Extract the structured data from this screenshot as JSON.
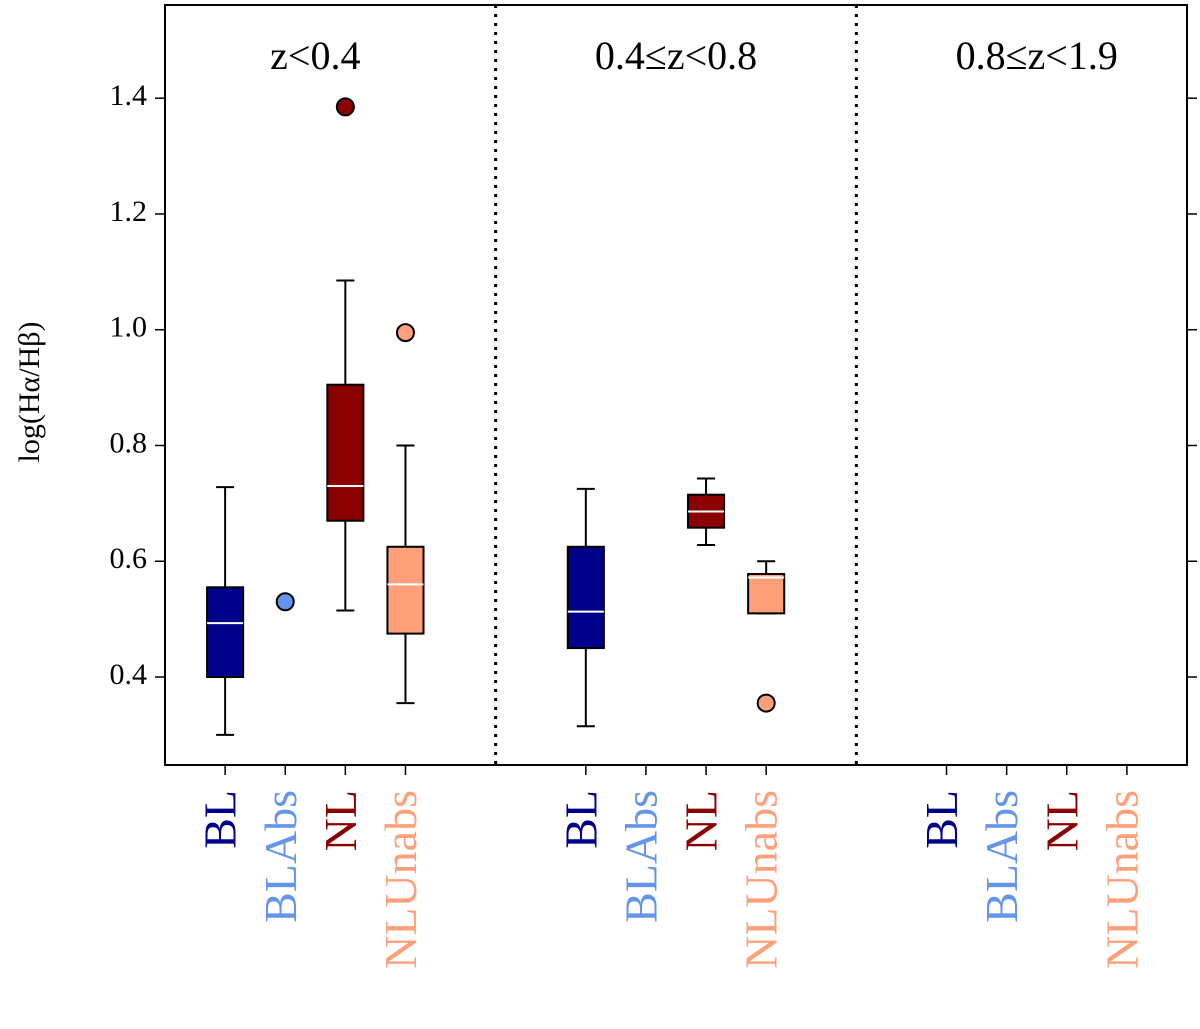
{
  "chart_data": {
    "type": "box",
    "ylabel": "log(Hα/Hβ)",
    "ylim": [
      0.248,
      1.561
    ],
    "yticks": [
      0.4,
      0.6,
      0.8,
      {
        "value": 1,
        "label": "1.0"
      },
      1.2,
      1.4
    ],
    "panels": [
      {
        "label": "z<0.4",
        "series": [
          {
            "name": "BL",
            "color": "#00008b",
            "stats": {
              "whislo": 0.3,
              "q1": 0.4,
              "med": 0.493,
              "q3": 0.555,
              "whishi": 0.728
            },
            "fliers": []
          },
          {
            "name": "BLAbs",
            "color": "#6495ed",
            "stats": null,
            "fliers": [
              0.53
            ]
          },
          {
            "name": "NL",
            "color": "#8b0000",
            "stats": {
              "whislo": 0.515,
              "q1": 0.67,
              "med": 0.73,
              "q3": 0.905,
              "whishi": 1.085
            },
            "fliers": [
              1.385
            ]
          },
          {
            "name": "NLUnabs",
            "color": "#ffa07a",
            "stats": {
              "whislo": 0.355,
              "q1": 0.475,
              "med": 0.56,
              "q3": 0.625,
              "whishi": 0.8
            },
            "fliers": [
              0.995
            ]
          }
        ]
      },
      {
        "label": "0.4≤z<0.8",
        "series": [
          {
            "name": "BL",
            "color": "#00008b",
            "stats": {
              "whislo": 0.315,
              "q1": 0.45,
              "med": 0.513,
              "q3": 0.625,
              "whishi": 0.725
            },
            "fliers": []
          },
          {
            "name": "BLAbs",
            "color": "#6495ed",
            "stats": null,
            "fliers": []
          },
          {
            "name": "NL",
            "color": "#8b0000",
            "stats": {
              "whislo": 0.628,
              "q1": 0.658,
              "med": 0.686,
              "q3": 0.715,
              "whishi": 0.743
            },
            "fliers": []
          },
          {
            "name": "NLUnabs",
            "color": "#ffa07a",
            "stats": {
              "whislo": 0.51,
              "q1": 0.51,
              "med": 0.572,
              "q3": 0.578,
              "whishi": 0.6
            },
            "fliers": [
              0.355
            ]
          }
        ]
      },
      {
        "label": "0.8≤z<1.9",
        "series": [
          {
            "name": "BL",
            "color": "#00008b",
            "stats": null,
            "fliers": []
          },
          {
            "name": "BLAbs",
            "color": "#6495ed",
            "stats": null,
            "fliers": []
          },
          {
            "name": "NL",
            "color": "#8b0000",
            "stats": null,
            "fliers": []
          },
          {
            "name": "NLUnabs",
            "color": "#ffa07a",
            "stats": null,
            "fliers": []
          }
        ]
      }
    ]
  }
}
